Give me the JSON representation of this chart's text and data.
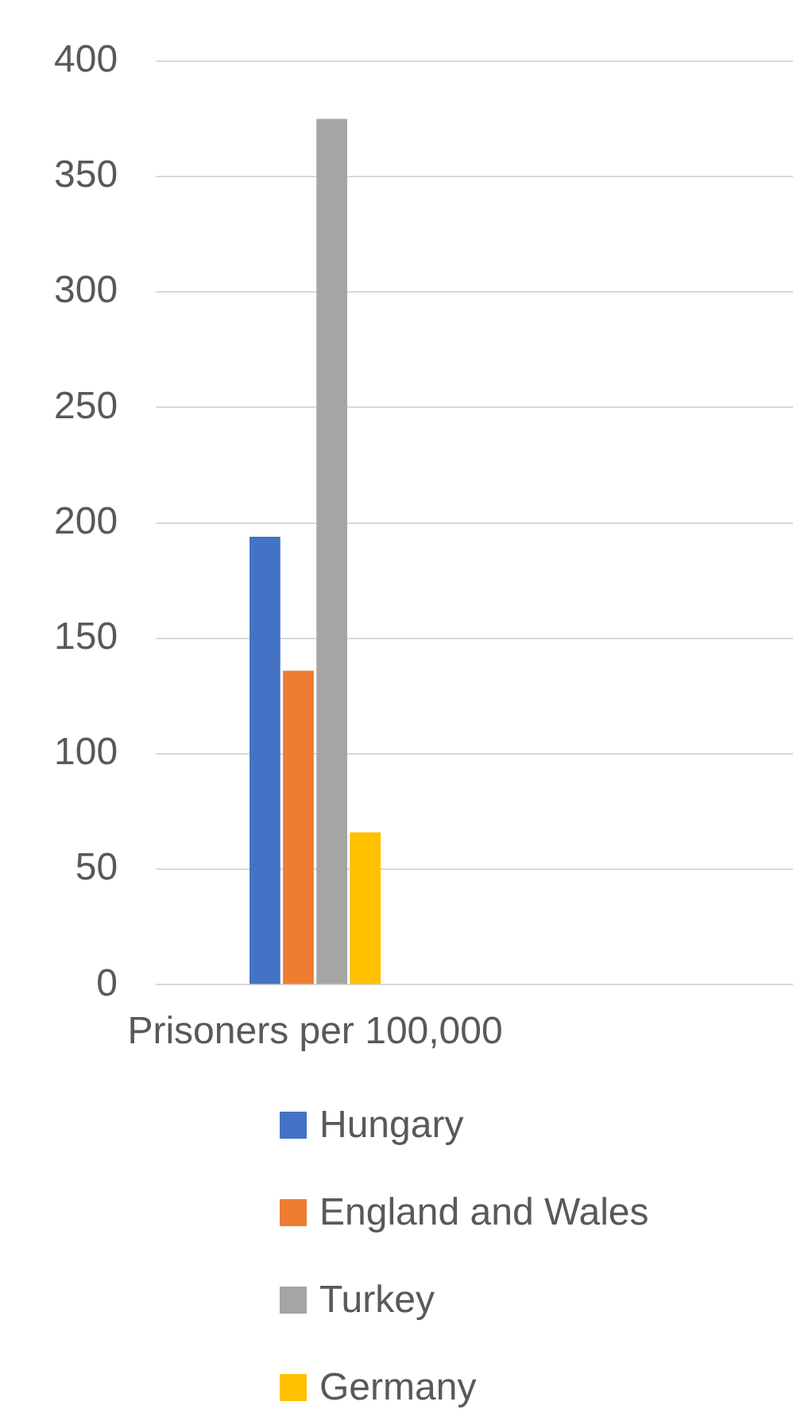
{
  "chart_data": {
    "type": "bar",
    "categories": [
      "Prisoners per 100,000",
      null
    ],
    "series": [
      {
        "name": "Hungary",
        "color": "#4472c4",
        "values": [
          194,
          null
        ]
      },
      {
        "name": "England and Wales",
        "color": "#ed7d31",
        "values": [
          136,
          null
        ]
      },
      {
        "name": "Turkey",
        "color": "#a5a5a5",
        "values": [
          375,
          null
        ]
      },
      {
        "name": "Germany",
        "color": "#ffc000",
        "values": [
          66,
          null
        ]
      }
    ],
    "ylim": [
      0,
      400
    ],
    "yticks": [
      0,
      50,
      100,
      150,
      200,
      250,
      300,
      350,
      400
    ],
    "grid": "y",
    "legend": "bottom"
  }
}
